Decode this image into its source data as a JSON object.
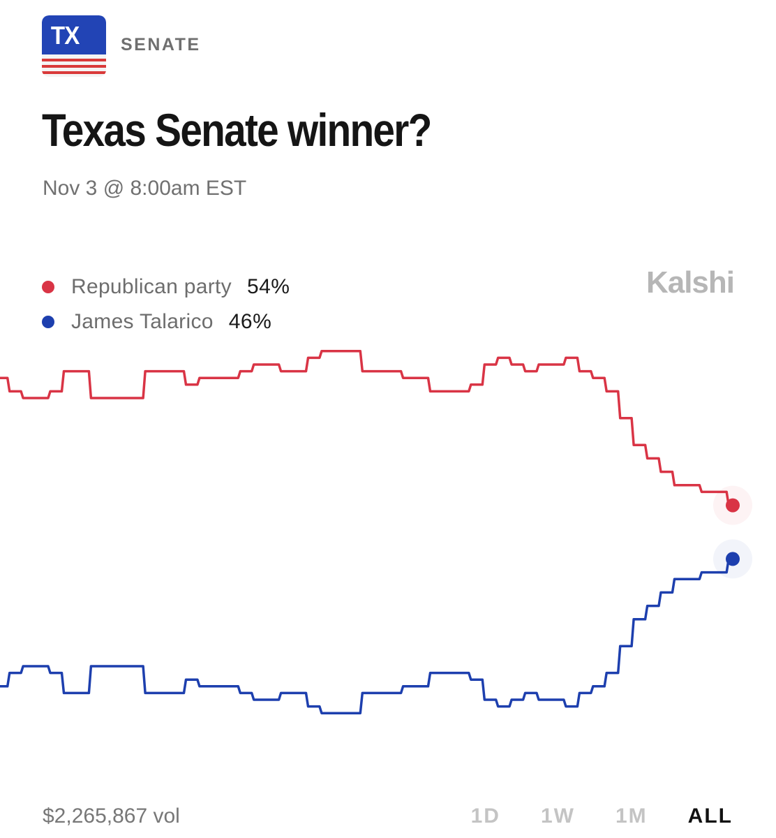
{
  "header": {
    "badge_text": "TX",
    "category": "SENATE",
    "title": "Texas Senate winner?",
    "date": "Nov 3 @ 8:00am EST"
  },
  "brand": "Kalshi",
  "legend": [
    {
      "name": "Republican party",
      "percent": "54%",
      "color": "#d93445"
    },
    {
      "name": "James Talarico",
      "percent": "46%",
      "color": "#1d3fae"
    }
  ],
  "footer": {
    "volume": "$2,265,867 vol",
    "ranges": [
      "1D",
      "1W",
      "1M",
      "ALL"
    ],
    "active_range": "ALL"
  },
  "colors": {
    "badge_blue": "#2244b5",
    "badge_red": "#d93a3a",
    "republican": "#d93445",
    "democrat": "#1d3fae"
  },
  "chart_data": {
    "type": "line",
    "title": "",
    "xlabel": "",
    "ylabel": "",
    "grid": false,
    "series": [
      {
        "name": "Republican party",
        "color": "#d93445",
        "values": [
          73,
          71,
          70,
          70,
          71,
          74,
          74,
          70,
          70,
          70,
          70,
          74,
          74,
          74,
          72,
          73,
          73,
          73,
          74,
          75,
          75,
          74,
          74,
          76,
          77,
          77,
          77,
          74,
          74,
          74,
          73,
          73,
          71,
          71,
          71,
          72,
          75,
          76,
          75,
          74,
          75,
          75,
          76,
          74,
          73,
          71,
          67,
          63,
          61,
          59,
          57,
          57,
          56,
          56,
          54
        ]
      },
      {
        "name": "James Talarico",
        "color": "#1d3fae",
        "values": [
          27,
          29,
          30,
          30,
          29,
          26,
          26,
          30,
          30,
          30,
          30,
          26,
          26,
          26,
          28,
          27,
          27,
          27,
          26,
          25,
          25,
          26,
          26,
          24,
          23,
          23,
          23,
          26,
          26,
          26,
          27,
          27,
          29,
          29,
          29,
          28,
          25,
          24,
          25,
          26,
          25,
          25,
          24,
          26,
          27,
          29,
          33,
          37,
          39,
          41,
          43,
          43,
          44,
          44,
          46
        ]
      }
    ]
  }
}
